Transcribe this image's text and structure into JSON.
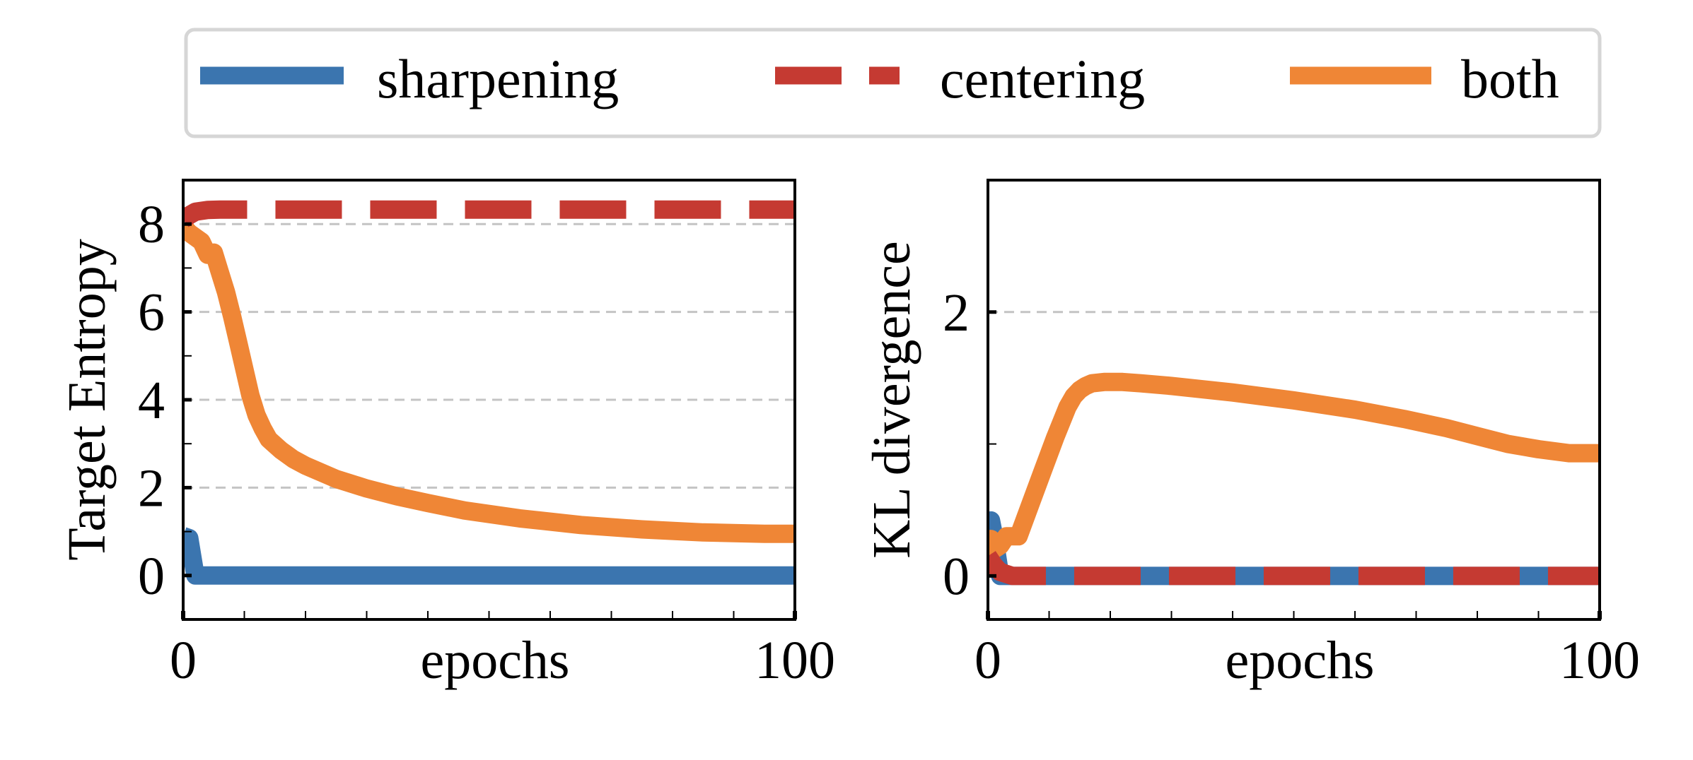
{
  "legend": {
    "entries": [
      {
        "label": "sharpening",
        "color": "#3B75AF",
        "style": "solid"
      },
      {
        "label": "centering",
        "color": "#C53A32",
        "style": "dashed"
      },
      {
        "label": "both",
        "color": "#EF8636",
        "style": "solid"
      }
    ]
  },
  "chart_data": [
    {
      "type": "line",
      "title": "",
      "xlabel": "epochs",
      "ylabel": "Target Entropy",
      "xlim": [
        0,
        100
      ],
      "ylim": [
        -1,
        9
      ],
      "xticks": [
        0,
        100
      ],
      "xtick_labels": [
        "0",
        "100"
      ],
      "xminor_step": 10,
      "yticks": [
        0,
        2,
        4,
        6,
        8
      ],
      "ytick_labels": [
        "0",
        "2",
        "4",
        "6",
        "8"
      ],
      "yminor_step": 1,
      "grid": "y-dashed",
      "legend": "top (shared)",
      "series": [
        {
          "name": "sharpening",
          "x": [
            0,
            1,
            2,
            100
          ],
          "y": [
            0.9,
            0.85,
            0.0,
            0.0
          ]
        },
        {
          "name": "centering",
          "x": [
            0,
            1,
            2,
            4,
            6,
            100
          ],
          "y": [
            8.1,
            8.2,
            8.28,
            8.32,
            8.33,
            8.33
          ]
        },
        {
          "name": "both",
          "x": [
            0,
            1,
            2,
            3,
            4,
            5,
            6,
            7,
            8,
            9,
            10,
            11,
            12,
            13,
            14,
            16,
            18,
            20,
            25,
            30,
            35,
            40,
            46,
            55,
            65,
            75,
            85,
            95,
            100
          ],
          "y": [
            7.95,
            7.8,
            7.7,
            7.6,
            7.3,
            7.35,
            6.9,
            6.45,
            5.9,
            5.3,
            4.7,
            4.1,
            3.65,
            3.35,
            3.1,
            2.85,
            2.65,
            2.5,
            2.2,
            1.98,
            1.8,
            1.65,
            1.48,
            1.3,
            1.15,
            1.05,
            0.98,
            0.95,
            0.95
          ]
        }
      ]
    },
    {
      "type": "line",
      "title": "",
      "xlabel": "epochs",
      "ylabel": "KL divergence",
      "xlim": [
        0,
        100
      ],
      "ylim": [
        -0.33,
        3
      ],
      "xticks": [
        0,
        100
      ],
      "xtick_labels": [
        "0",
        "100"
      ],
      "xminor_step": 10,
      "yticks": [
        0,
        2
      ],
      "ytick_labels": [
        "0",
        "2"
      ],
      "yminor_step": 1,
      "grid": "y-dashed",
      "legend": "top (shared)",
      "series": [
        {
          "name": "sharpening",
          "x": [
            0,
            0.5,
            1,
            2,
            100
          ],
          "y": [
            0.35,
            0.42,
            0.3,
            0.0,
            0.0
          ]
        },
        {
          "name": "centering",
          "x": [
            0,
            1,
            2,
            4,
            100
          ],
          "y": [
            0.15,
            0.08,
            0.03,
            0.0,
            0.0
          ]
        },
        {
          "name": "both",
          "x": [
            0,
            0.5,
            1,
            2,
            3,
            4,
            5,
            7,
            9,
            11,
            13,
            14,
            15,
            16,
            17,
            19,
            22,
            25,
            30,
            40,
            50,
            60,
            68,
            75,
            80,
            85,
            90,
            95,
            100
          ],
          "y": [
            0.2,
            0.28,
            0.2,
            0.23,
            0.3,
            0.3,
            0.3,
            0.55,
            0.8,
            1.05,
            1.28,
            1.36,
            1.41,
            1.44,
            1.46,
            1.47,
            1.47,
            1.46,
            1.44,
            1.39,
            1.33,
            1.26,
            1.19,
            1.12,
            1.06,
            1.0,
            0.96,
            0.93,
            0.93
          ]
        }
      ]
    }
  ]
}
